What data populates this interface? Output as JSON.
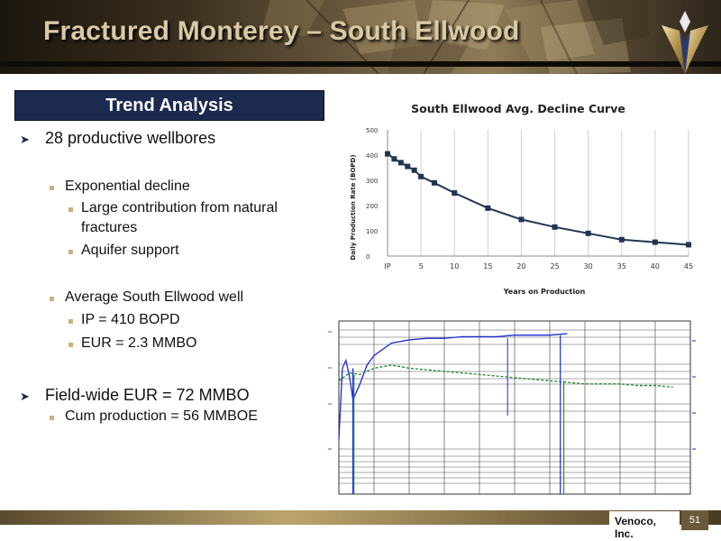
{
  "slide": {
    "title": "Fractured Monterey – South Ellwood",
    "section_heading": "Trend Analysis",
    "bullets": {
      "b1": "28 productive wellbores",
      "b1a": "Exponential decline",
      "b1a1": "Large contribution from natural",
      "b1a1b": "fractures",
      "b1a2": "Aquifer support",
      "b1b": "Average South Ellwood well",
      "b1b1": "IP = 410 BOPD",
      "b1b2": "EUR = 2.3 MMBO",
      "b2": "Field-wide EUR = 72 MMBO",
      "b2a": "Cum production = 56 MMBOE"
    },
    "footer": {
      "company": "Venoco, Inc.",
      "page": "51"
    },
    "colors": {
      "heading_bg": "#1b2a4e",
      "accent_gold": "#c8b27c",
      "curve": "#1f3552",
      "series_blue": "#1a2bd0",
      "series_green": "#1c8a2a"
    }
  },
  "chart_data": [
    {
      "type": "line",
      "title": "South Ellwood Avg. Decline Curve",
      "xlabel": "Years on Production",
      "ylabel": "Daily Production Rate (BOPD)",
      "x_ticks": [
        "IP",
        "5",
        "10",
        "15",
        "20",
        "25",
        "30",
        "35",
        "40",
        "45"
      ],
      "y_ticks": [
        "0",
        "100",
        "200",
        "300",
        "400",
        "500"
      ],
      "xlim": [
        0,
        45
      ],
      "ylim": [
        0,
        500
      ],
      "grid": "vertical",
      "series": [
        {
          "x": [
            0,
            1,
            2,
            3,
            4,
            5,
            7,
            10,
            15,
            20,
            25,
            30,
            35,
            40,
            45
          ],
          "y": [
            405,
            385,
            370,
            355,
            340,
            315,
            290,
            250,
            190,
            145,
            115,
            90,
            65,
            55,
            45
          ]
        }
      ]
    },
    {
      "type": "line",
      "title": "",
      "grid": "both",
      "series": [
        {
          "color": "blue",
          "x": [
            0,
            1,
            2,
            3,
            4,
            6,
            8,
            10,
            15,
            20,
            25,
            30,
            35,
            40,
            45,
            50,
            55,
            60,
            65
          ],
          "y": [
            35,
            80,
            85,
            75,
            60,
            70,
            82,
            88,
            96,
            98,
            99,
            99,
            100,
            100,
            100,
            101,
            101,
            101,
            102
          ]
        },
        {
          "color": "green",
          "x": [
            0,
            3,
            6,
            10,
            15,
            20,
            25,
            30,
            35,
            40,
            45,
            50,
            55,
            60,
            65,
            70,
            75,
            80,
            85,
            90,
            95
          ],
          "y": [
            72,
            77,
            76,
            80,
            82,
            80,
            79,
            78,
            77,
            76,
            75,
            74,
            73,
            72,
            71,
            70,
            70,
            70,
            69,
            69,
            68
          ]
        }
      ]
    }
  ]
}
